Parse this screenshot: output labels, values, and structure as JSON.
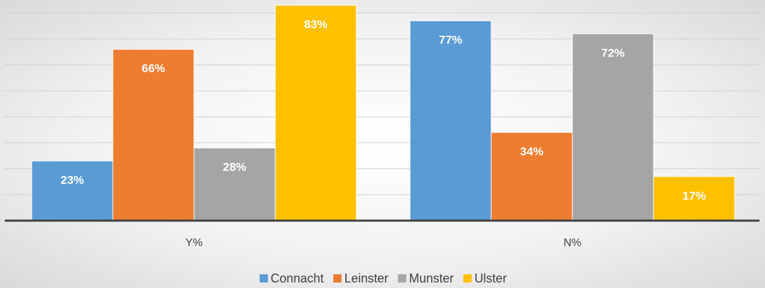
{
  "chart_data": {
    "type": "bar",
    "categories": [
      "Y%",
      "N%"
    ],
    "series": [
      {
        "name": "Connacht",
        "color": "#5b9bd5",
        "values": [
          23,
          77
        ],
        "value_labels": [
          "23%",
          "77%"
        ]
      },
      {
        "name": "Leinster",
        "color": "#ed7d31",
        "values": [
          66,
          34
        ],
        "value_labels": [
          "66%",
          "34%"
        ]
      },
      {
        "name": "Munster",
        "color": "#a5a5a5",
        "values": [
          28,
          72
        ],
        "value_labels": [
          "28%",
          "72%"
        ]
      },
      {
        "name": "Ulster",
        "color": "#ffc000",
        "values": [
          83,
          17
        ],
        "value_labels": [
          "83%",
          "17%"
        ]
      }
    ],
    "ylim": [
      0,
      85
    ],
    "yticks": [
      0,
      10,
      20,
      30,
      40,
      50,
      60,
      70,
      80
    ],
    "grid": true,
    "legend": "bottom"
  }
}
